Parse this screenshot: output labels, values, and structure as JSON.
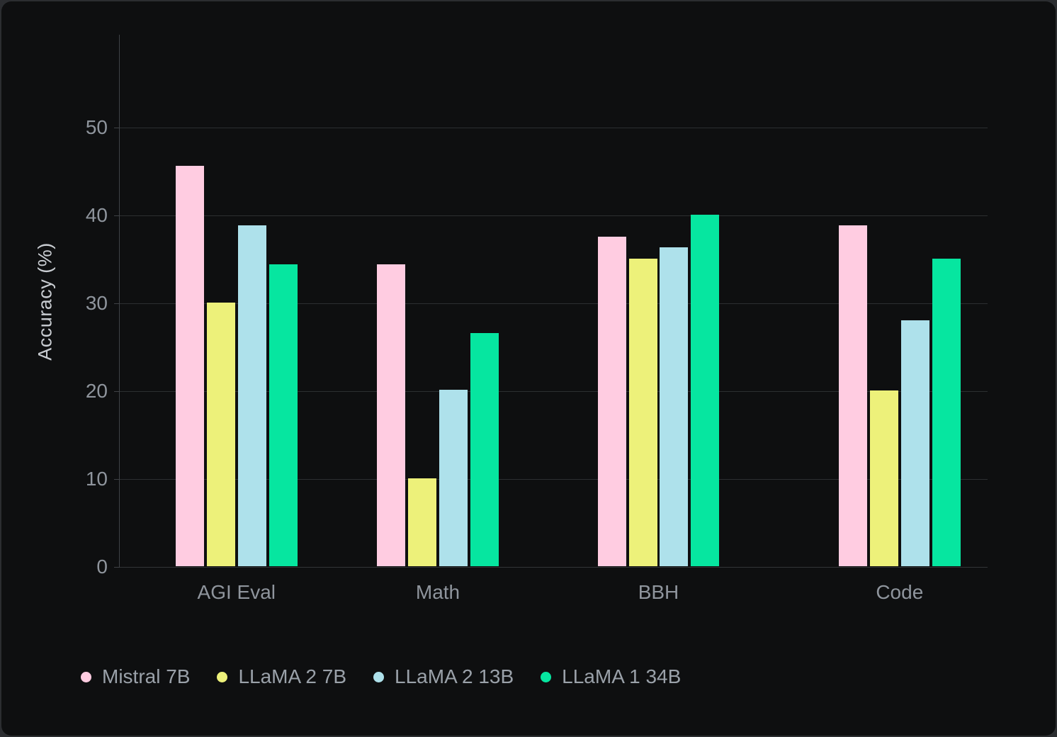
{
  "chart_data": {
    "type": "bar",
    "title": "",
    "xlabel": "",
    "ylabel": "Accuracy (%)",
    "categories": [
      "AGI Eval",
      "Math",
      "BBH",
      "Code"
    ],
    "series": [
      {
        "name": "Mistral 7B",
        "color": "#ffcce1",
        "values": [
          45.5,
          34.3,
          37.5,
          38.8
        ]
      },
      {
        "name": "LLaMA 2 7B",
        "color": "#edf17a",
        "values": [
          30.0,
          10.0,
          35.0,
          20.0
        ]
      },
      {
        "name": "LLaMA 2 13B",
        "color": "#aee1eb",
        "values": [
          38.8,
          20.1,
          36.3,
          28.0
        ]
      },
      {
        "name": "LLaMA 1 34B",
        "color": "#06e6a0",
        "values": [
          34.3,
          26.5,
          40.0,
          35.0
        ]
      }
    ],
    "yticks": [
      0,
      10,
      20,
      30,
      40,
      50
    ],
    "ylim": [
      0,
      60.5
    ],
    "grid": "horizontal",
    "legend_position": "bottom-left",
    "background_color": "#0e0f10",
    "page_color": "#2b2d30",
    "text_color": "#8f959d"
  }
}
